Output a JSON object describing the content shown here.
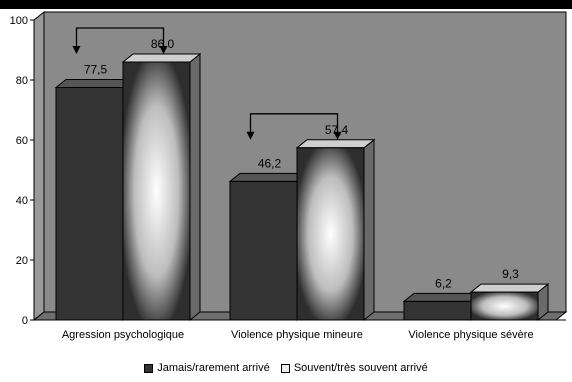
{
  "chart_data": {
    "type": "bar",
    "categories": [
      "Agression psychologique",
      "Violence physique mineure",
      "Violence physique sévère"
    ],
    "series": [
      {
        "name": "Jamais/rarement arrivé",
        "values": [
          77.5,
          46.2,
          6.2
        ],
        "labels": [
          "77,5",
          "46,2",
          "6,2"
        ],
        "color": "#333333"
      },
      {
        "name": "Souvent/très souvent arrivé",
        "values": [
          86.0,
          57.4,
          9.3
        ],
        "labels": [
          "86,0",
          "57,4",
          "9,3"
        ],
        "color": "#e8e8e8"
      }
    ],
    "title": "",
    "xlabel": "",
    "ylabel": "",
    "ylim": [
      0,
      100
    ],
    "yticks": [
      0,
      20,
      40,
      60,
      80,
      100
    ],
    "grid": false,
    "legend_position": "bottom"
  },
  "legend": {
    "item1": "Jamais/rarement arrivé",
    "item2": "Souvent/très souvent arrivé"
  }
}
